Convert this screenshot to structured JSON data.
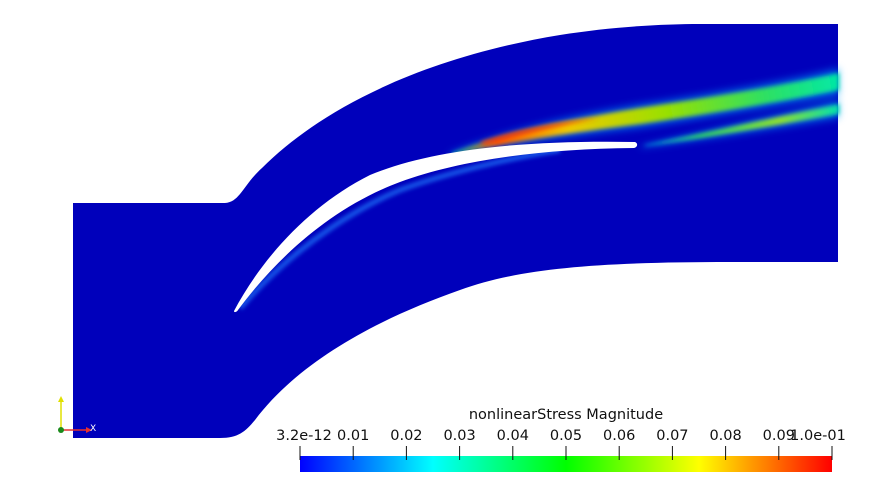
{
  "colorbar": {
    "title": "nonlinearStress Magnitude",
    "tick_labels": [
      "3.2e-12",
      "0.01",
      "0.02",
      "0.03",
      "0.04",
      "0.05",
      "0.06",
      "0.07",
      "0.08",
      "0.09",
      "1.0e-01"
    ],
    "range": [
      3.2e-12,
      0.1
    ],
    "colormap": [
      "#0000ff",
      "#00ffff",
      "#00ff00",
      "#ffff00",
      "#ff0000"
    ]
  },
  "orientation_axes": {
    "x_label": "X",
    "x_color": "#e63030",
    "y_color": "#e0e000",
    "z_color": "#1a8a1a"
  },
  "field": {
    "base_color": "#0000bb",
    "background": "#ffffff"
  }
}
